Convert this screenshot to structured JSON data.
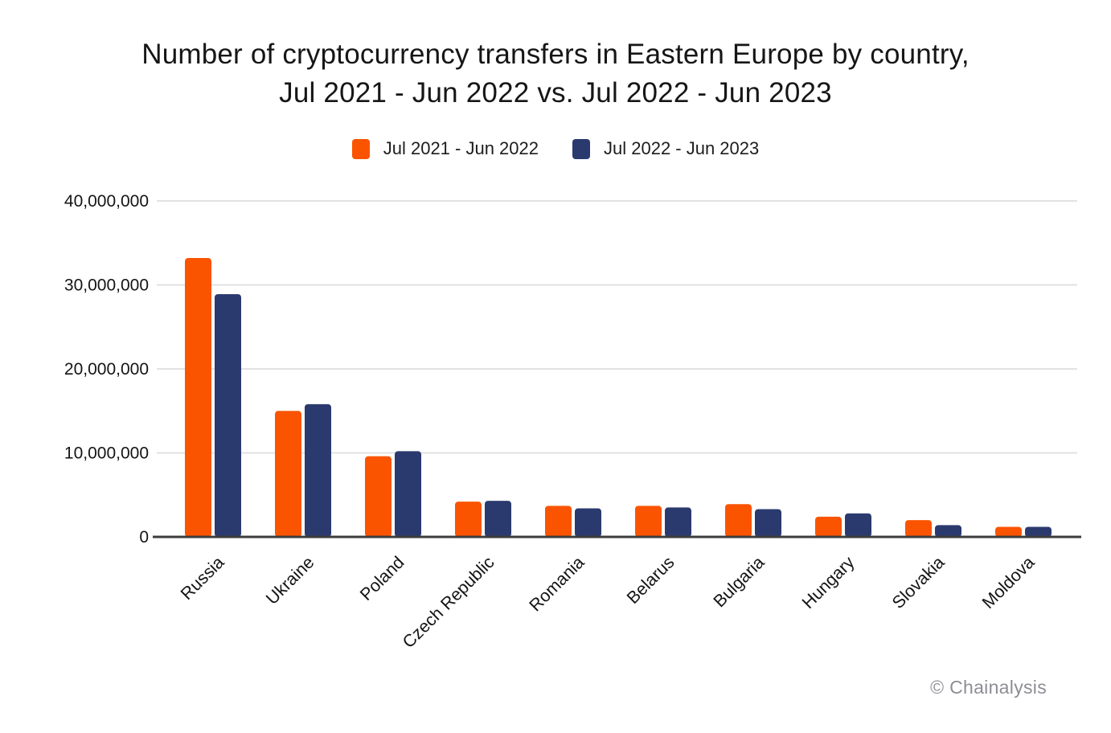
{
  "title_lines": [
    "Number of cryptocurrency transfers in Eastern Europe by country,",
    "Jul 2021 - Jun 2022 vs. Jul 2022 - Jun 2023"
  ],
  "watermark": "© Chainalysis",
  "colors": {
    "series_2021": "#fb5400",
    "series_2022": "#2b3a6e",
    "gridline": "#d9d9d9",
    "baseline": "#3c3c3c",
    "axis_text": "#141414",
    "title_text": "#161616",
    "watermark_text": "#8d8d95",
    "background": "#ffffff"
  },
  "chart_data": {
    "type": "bar",
    "title": "Number of cryptocurrency transfers in Eastern Europe by country, Jul 2021 - Jun 2022 vs. Jul 2022 - Jun 2023",
    "categories": [
      "Russia",
      "Ukraine",
      "Poland",
      "Czech Republic",
      "Romania",
      "Belarus",
      "Bulgaria",
      "Hungary",
      "Slovakia",
      "Moldova"
    ],
    "series": [
      {
        "name": "Jul 2021 - Jun 2022",
        "color": "#fb5400",
        "values": [
          33200000,
          15000000,
          9600000,
          4200000,
          3700000,
          3700000,
          3900000,
          2400000,
          2000000,
          1200000
        ]
      },
      {
        "name": "Jul 2022 - Jun 2023",
        "color": "#2b3a6e",
        "values": [
          28900000,
          15800000,
          10200000,
          4300000,
          3400000,
          3500000,
          3300000,
          2800000,
          1400000,
          1200000
        ]
      }
    ],
    "xlabel": "",
    "ylabel": "",
    "ylim": [
      0,
      40000000
    ],
    "ytick_step": 10000000,
    "ytick_labels": [
      "0",
      "10,000,000",
      "20,000,000",
      "30,000,000",
      "40,000,000"
    ],
    "grid": true,
    "legend_position": "top",
    "x_label_rotation_deg": -45,
    "attribution": "© Chainalysis"
  }
}
